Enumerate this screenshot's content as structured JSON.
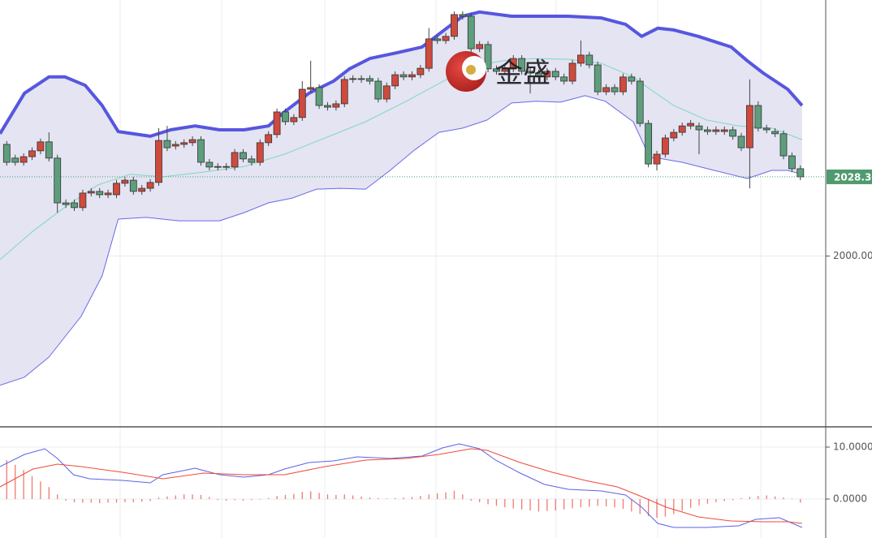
{
  "watermark": "金盛",
  "chart_data": [
    {
      "type": "candlestick",
      "xlim": [
        -0.8,
        97
      ],
      "ylim": [
        1939.25,
        2091.5
      ],
      "yticks": [
        {
          "value": 2000,
          "label": "2000.00"
        }
      ],
      "up_color": "#cf4a3e",
      "down_color": "#5e9e7c",
      "open": [
        2039.9,
        2035.0,
        2033.5,
        2035.5,
        2037.6,
        2040.8,
        2035.0,
        2019.0,
        2019.0,
        2017.3,
        2022.5,
        2023.1,
        2021.9,
        2021.9,
        2026.0,
        2027.1,
        2023.1,
        2024.2,
        2026.3,
        2041.3,
        2039.3,
        2039.9,
        2040.5,
        2041.6,
        2033.5,
        2031.8,
        2032.0,
        2031.8,
        2037.0,
        2034.7,
        2033.5,
        2040.5,
        2043.4,
        2051.5,
        2048.0,
        2049.5,
        2059.6,
        2060.2,
        2053.8,
        2053.2,
        2054.4,
        2063.1,
        2063.4,
        2063.4,
        2062.5,
        2056.1,
        2060.8,
        2064.8,
        2064.0,
        2064.8,
        2067.1,
        2077.6,
        2077.0,
        2078.5,
        2086.3,
        2085.7,
        2074.1,
        2075.6,
        2066.9,
        2066.0,
        2066.9,
        2070.6,
        2066.0,
        2065.4,
        2064.0,
        2066.0,
        2064.0,
        2062.5,
        2068.9,
        2071.8,
        2068.3,
        2058.7,
        2060.2,
        2058.7,
        2064.0,
        2062.5,
        2047.4,
        2032.9,
        2036.4,
        2042.2,
        2044.2,
        2046.5,
        2046.5,
        2045.1,
        2044.5,
        2044.5,
        2045.1,
        2042.8,
        2038.7,
        2053.8,
        2045.7,
        2044.5,
        2043.7,
        2035.8,
        2031.2
      ],
      "high": [
        2041.1,
        2036.2,
        2036.7,
        2038.8,
        2042.0,
        2044.2,
        2036.2,
        2020.2,
        2020.2,
        2023.7,
        2024.3,
        2024.3,
        2023.7,
        2027.2,
        2028.3,
        2028.3,
        2025.4,
        2027.5,
        2045.7,
        2046.5,
        2041.1,
        2041.7,
        2042.8,
        2042.8,
        2034.7,
        2033.2,
        2033.2,
        2038.2,
        2038.2,
        2035.9,
        2041.7,
        2044.6,
        2052.7,
        2052.7,
        2050.7,
        2062.5,
        2069.8,
        2061.4,
        2055.0,
        2055.6,
        2064.3,
        2064.6,
        2064.6,
        2064.6,
        2063.7,
        2062.0,
        2066.0,
        2066.0,
        2066.0,
        2068.3,
        2081.5,
        2078.8,
        2079.7,
        2087.4,
        2087.5,
        2086.9,
        2076.8,
        2076.8,
        2068.1,
        2068.1,
        2071.8,
        2071.8,
        2067.2,
        2066.6,
        2067.2,
        2067.2,
        2065.2,
        2070.1,
        2077.0,
        2073.0,
        2069.5,
        2061.4,
        2061.4,
        2065.2,
        2065.2,
        2063.7,
        2048.6,
        2037.6,
        2043.4,
        2045.4,
        2047.7,
        2048.6,
        2047.7,
        2046.3,
        2046.3,
        2046.3,
        2046.3,
        2044.0,
        2063.1,
        2055.3,
        2046.9,
        2045.7,
        2044.9,
        2037.0,
        2032.4
      ],
      "low": [
        2032.3,
        2032.3,
        2032.3,
        2034.3,
        2036.4,
        2033.8,
        2015.5,
        2017.2,
        2016.1,
        2016.1,
        2021.3,
        2020.7,
        2020.7,
        2020.7,
        2024.8,
        2021.9,
        2021.9,
        2023.0,
        2025.1,
        2037.5,
        2038.1,
        2038.7,
        2039.3,
        2032.3,
        2030.6,
        2030.6,
        2030.6,
        2030.6,
        2033.5,
        2032.3,
        2032.3,
        2039.3,
        2042.2,
        2046.8,
        2046.8,
        2048.3,
        2058.4,
        2052.6,
        2052.0,
        2052.0,
        2053.2,
        2061.9,
        2061.9,
        2061.3,
        2054.9,
        2054.9,
        2059.6,
        2062.8,
        2062.8,
        2063.6,
        2065.9,
        2075.8,
        2075.8,
        2077.3,
        2084.5,
        2072.9,
        2072.9,
        2065.7,
        2064.8,
        2064.8,
        2065.7,
        2064.8,
        2058.1,
        2062.8,
        2062.8,
        2062.8,
        2061.3,
        2061.3,
        2067.7,
        2067.1,
        2057.5,
        2057.5,
        2057.5,
        2057.5,
        2061.3,
        2046.2,
        2031.7,
        2030.6,
        2035.2,
        2041.0,
        2043.0,
        2045.3,
        2036.4,
        2043.3,
        2043.3,
        2043.3,
        2041.6,
        2037.5,
        2024.2,
        2044.5,
        2043.9,
        2042.5,
        2034.6,
        2030.0,
        2027.1
      ],
      "close": [
        2033.5,
        2033.5,
        2035.5,
        2037.6,
        2040.8,
        2035.0,
        2019.0,
        2018.4,
        2017.3,
        2022.5,
        2023.1,
        2021.9,
        2022.5,
        2026.0,
        2027.1,
        2023.1,
        2024.2,
        2026.3,
        2041.3,
        2038.7,
        2039.9,
        2040.5,
        2041.6,
        2033.5,
        2031.8,
        2032.0,
        2031.8,
        2037.0,
        2034.7,
        2033.5,
        2040.5,
        2043.4,
        2051.5,
        2048.0,
        2049.5,
        2059.6,
        2060.2,
        2053.8,
        2053.2,
        2054.4,
        2063.1,
        2063.4,
        2063.1,
        2062.5,
        2056.1,
        2060.8,
        2064.8,
        2064.0,
        2064.8,
        2067.1,
        2077.6,
        2077.0,
        2078.5,
        2086.3,
        2085.7,
        2074.1,
        2075.6,
        2066.9,
        2066.0,
        2066.9,
        2070.6,
        2066.0,
        2065.4,
        2064.0,
        2066.0,
        2064.0,
        2062.5,
        2068.9,
        2071.8,
        2068.3,
        2058.7,
        2060.2,
        2058.7,
        2064.0,
        2062.5,
        2047.4,
        2032.9,
        2036.4,
        2042.2,
        2044.2,
        2046.5,
        2047.4,
        2045.1,
        2044.5,
        2045.1,
        2045.1,
        2042.8,
        2038.7,
        2053.8,
        2045.7,
        2045.1,
        2043.7,
        2035.8,
        2031.2,
        2028.3
      ],
      "band_fill": "#e4e4f3",
      "bands": [
        {
          "color": "#5656e0",
          "width": 4,
          "x": [
            -0.8,
            2.1,
            5.0,
            6.9,
            9.3,
            11.3,
            13.2,
            17.0,
            19.4,
            22.3,
            25.2,
            28.1,
            31.0,
            32.9,
            35.8,
            38.7,
            40.6,
            43.0,
            46.3,
            49.2,
            52.1,
            54.0,
            56.0,
            59.8,
            62.7,
            66.5,
            70.4,
            73.3,
            75.2,
            77.1,
            79.0,
            81.9,
            85.8,
            87.7,
            89.6,
            92.5,
            94.2
          ],
          "values": [
            2043.7,
            2058.2,
            2064.0,
            2064.0,
            2061.0,
            2053.8,
            2044.5,
            2042.8,
            2045.1,
            2046.5,
            2045.1,
            2045.1,
            2046.5,
            2051.5,
            2058.2,
            2062.5,
            2066.9,
            2070.6,
            2072.7,
            2074.7,
            2081.4,
            2085.7,
            2087.2,
            2085.7,
            2085.7,
            2085.7,
            2085.1,
            2082.8,
            2078.5,
            2081.4,
            2080.8,
            2078.5,
            2074.7,
            2069.8,
            2065.4,
            2059.6,
            2053.8
          ]
        },
        {
          "color": "#7fd8c0",
          "width": 1,
          "x": [
            -0.8,
            3.1,
            6.9,
            10.8,
            14.6,
            18.5,
            23.3,
            28.1,
            32.9,
            37.7,
            42.5,
            47.3,
            52.1,
            55.0,
            58.8,
            62.7,
            66.5,
            70.4,
            74.2,
            76.2,
            79.0,
            82.9,
            86.7,
            90.6,
            94.2
          ],
          "values": [
            1998.7,
            2008.9,
            2017.5,
            2025.4,
            2029.2,
            2028.3,
            2030.0,
            2032.0,
            2036.4,
            2042.2,
            2048.0,
            2055.3,
            2063.1,
            2067.7,
            2069.8,
            2070.6,
            2070.3,
            2068.9,
            2064.0,
            2059.6,
            2053.8,
            2048.6,
            2046.5,
            2045.7,
            2041.6
          ]
        },
        {
          "color": "#6a6ae8",
          "width": 1,
          "x": [
            -0.8,
            2.1,
            5.0,
            8.8,
            11.3,
            13.2,
            16.5,
            20.4,
            25.2,
            28.1,
            31.0,
            33.8,
            36.7,
            39.6,
            42.5,
            45.4,
            48.3,
            51.2,
            54.0,
            56.9,
            59.8,
            62.7,
            65.6,
            68.5,
            70.9,
            74.2,
            76.2,
            77.1,
            80.0,
            83.8,
            87.7,
            90.6,
            92.5,
            94.2
          ],
          "values": [
            1953.8,
            1956.7,
            1963.9,
            1978.4,
            1992.9,
            2013.2,
            2013.8,
            2012.6,
            2012.6,
            2015.5,
            2019.0,
            2020.7,
            2023.9,
            2024.2,
            2023.9,
            2030.6,
            2037.9,
            2044.2,
            2045.7,
            2048.6,
            2054.7,
            2055.3,
            2055.0,
            2057.3,
            2055.3,
            2048.0,
            2035.0,
            2035.0,
            2033.5,
            2030.6,
            2027.7,
            2030.6,
            2030.6,
            2029.2
          ]
        }
      ],
      "last_price": {
        "value": 2028.3,
        "label": "2028.30",
        "color": "#4f9a6e"
      }
    },
    {
      "type": "macd",
      "xlim": [
        -0.8,
        97
      ],
      "ylim": [
        -7.5,
        13.75
      ],
      "yticks": [
        {
          "value": 10,
          "label": "10.0000"
        },
        {
          "value": 0,
          "label": "0.0000"
        }
      ],
      "histogram": {
        "color": "#f07a6e",
        "values": [
          7.5,
          6.6,
          5.6,
          4.4,
          3.4,
          2.3,
          0.9,
          -0.3,
          -0.6,
          -0.7,
          -0.7,
          -0.8,
          -0.7,
          -0.7,
          -0.6,
          -0.6,
          -0.5,
          -0.4,
          0.3,
          0.5,
          0.7,
          0.9,
          0.9,
          0.8,
          0.4,
          -0.2,
          -0.3,
          -0.2,
          -0.3,
          -0.2,
          -0.1,
          0.2,
          0.6,
          0.8,
          1.0,
          1.4,
          1.5,
          1.2,
          0.9,
          0.8,
          0.9,
          0.7,
          0.5,
          0.3,
          0.2,
          0.1,
          0.2,
          0.3,
          0.4,
          0.6,
          0.9,
          1.1,
          1.3,
          1.6,
          0.9,
          -0.3,
          -0.6,
          -1.0,
          -1.3,
          -1.6,
          -1.8,
          -2.0,
          -2.2,
          -2.4,
          -2.3,
          -2.2,
          -2.0,
          -1.8,
          -1.6,
          -1.5,
          -1.3,
          -1.4,
          -1.6,
          -1.9,
          -2.4,
          -2.9,
          -3.3,
          -3.6,
          -3.4,
          -2.9,
          -2.3,
          -1.7,
          -1.2,
          -0.9,
          -0.6,
          -0.4,
          -0.2,
          0.2,
          0.4,
          0.6,
          0.7,
          0.5,
          0.3,
          0.1,
          -0.7
        ]
      },
      "lines": [
        {
          "color": "#5b62e6",
          "x": [
            -0.8,
            2.1,
            4.5,
            6.0,
            7.9,
            9.8,
            13.7,
            17.0,
            18.5,
            22.3,
            25.2,
            28.1,
            31.0,
            32.9,
            35.8,
            38.7,
            41.5,
            45.4,
            49.2,
            51.6,
            53.6,
            56.0,
            57.9,
            60.8,
            63.7,
            66.5,
            70.4,
            73.3,
            75.2,
            77.1,
            79.0,
            82.9,
            86.7,
            88.7,
            91.5,
            94.2
          ],
          "values": [
            6.25,
            8.59,
            9.69,
            7.81,
            4.69,
            3.91,
            3.59,
            3.13,
            4.69,
            5.94,
            4.69,
            4.22,
            4.69,
            5.78,
            7.03,
            7.34,
            8.13,
            7.81,
            8.28,
            9.84,
            10.63,
            9.69,
            7.5,
            5.0,
            2.81,
            1.88,
            1.56,
            0.78,
            -1.56,
            -4.69,
            -5.47,
            -5.47,
            -5.16,
            -3.91,
            -3.59,
            -5.47
          ]
        },
        {
          "color": "#ee4a3a",
          "x": [
            -0.8,
            3.1,
            6.0,
            8.8,
            13.7,
            18.5,
            23.3,
            28.1,
            32.9,
            37.7,
            42.5,
            47.3,
            51.2,
            55.0,
            56.9,
            60.8,
            64.6,
            68.5,
            72.3,
            75.2,
            78.1,
            81.9,
            85.8,
            89.6,
            92.5,
            94.2
          ],
          "values": [
            2.34,
            5.78,
            6.72,
            6.25,
            5.16,
            3.91,
            5.0,
            4.69,
            4.69,
            6.25,
            7.5,
            7.81,
            8.59,
            9.69,
            9.38,
            7.03,
            5.16,
            3.59,
            2.34,
            0.47,
            -1.56,
            -3.44,
            -4.22,
            -4.38,
            -4.38,
            -4.69
          ]
        }
      ]
    }
  ]
}
